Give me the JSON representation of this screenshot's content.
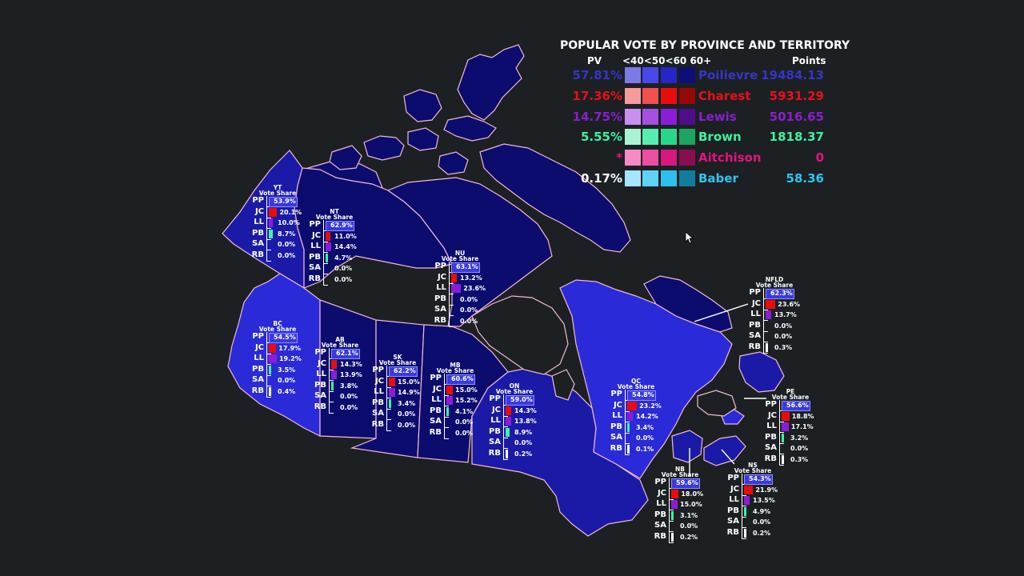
{
  "legend": {
    "title": "POPULAR VOTE BY PROVINCE AND TERRITORY",
    "col_pv": "PV",
    "col_bins": "<40<50<60 60+",
    "col_points": "Points",
    "candidates": [
      {
        "pv": "57.81%",
        "name": "Poilievre",
        "points": "19484.13",
        "color": "#3535c8",
        "swatches": [
          "#7a7ae8",
          "#4848e8",
          "#2525c8",
          "#0e0e78"
        ]
      },
      {
        "pv": "17.36%",
        "name": "Charest",
        "points": "5931.29",
        "color": "#e8101a",
        "swatches": [
          "#f79a9a",
          "#ef5050",
          "#e80d0d",
          "#960808"
        ]
      },
      {
        "pv": "14.75%",
        "name": "Lewis",
        "points": "5016.65",
        "color": "#8a1ed0",
        "swatches": [
          "#c98ef0",
          "#a550e0",
          "#8a1ed8",
          "#4e0e88"
        ]
      },
      {
        "pv": "5.55%",
        "name": "Brown",
        "points": "1818.37",
        "color": "#3df2a0",
        "swatches": [
          "#a8f5cf",
          "#56eeb0",
          "#27d88a",
          "#1ca463"
        ]
      },
      {
        "pv": "*",
        "name": "Aitchison",
        "points": "0",
        "color": "#e0157d",
        "swatches": [
          "#f58ac4",
          "#ec4ea2",
          "#d6187f",
          "#880e4f"
        ]
      },
      {
        "pv": "0.17%",
        "name": "Baber",
        "points": "58.36",
        "color": "#2ec4ef",
        "swatches": [
          "#a4e6fb",
          "#5fd3f5",
          "#2ec0ec",
          "#137c9c"
        ]
      }
    ]
  },
  "row_labels": [
    "PP",
    "JC",
    "LL",
    "PB",
    "SA",
    "RB"
  ],
  "vote_share_label": "Vote Share",
  "provinces": [
    {
      "abbr": "YT",
      "values": [
        "53.9%",
        "20.1%",
        "10.0%",
        "8.7%",
        "0.0%",
        "0.0%"
      ],
      "shares": [
        53.9,
        20.1,
        10.0,
        8.7,
        0.0,
        0.0
      ]
    },
    {
      "abbr": "NT",
      "values": [
        "62.9%",
        "11.0%",
        "14.4%",
        "4.7%",
        "0.0%",
        "0.0%"
      ],
      "shares": [
        62.9,
        11.0,
        14.4,
        4.7,
        0.0,
        0.0
      ]
    },
    {
      "abbr": "NU",
      "values": [
        "63.1%",
        "13.2%",
        "23.6%",
        "0.0%",
        "0.0%",
        "0.0%"
      ],
      "shares": [
        63.1,
        13.2,
        23.6,
        0.0,
        0.0,
        0.0
      ]
    },
    {
      "abbr": "BC",
      "values": [
        "54.5%",
        "17.9%",
        "19.2%",
        "3.5%",
        "0.0%",
        "0.4%"
      ],
      "shares": [
        54.5,
        17.9,
        19.2,
        3.5,
        0.0,
        0.4
      ]
    },
    {
      "abbr": "AB",
      "values": [
        "62.1%",
        "14.3%",
        "13.9%",
        "3.8%",
        "0.0%",
        "0.0%"
      ],
      "shares": [
        62.1,
        14.3,
        13.9,
        3.8,
        0.0,
        0.0
      ]
    },
    {
      "abbr": "SK",
      "values": [
        "62.2%",
        "15.0%",
        "14.9%",
        "3.4%",
        "0.0%",
        "0.0%"
      ],
      "shares": [
        62.2,
        15.0,
        14.9,
        3.4,
        0.0,
        0.0
      ]
    },
    {
      "abbr": "MB",
      "values": [
        "60.6%",
        "15.0%",
        "15.2%",
        "4.1%",
        "0.0%",
        "0.0%"
      ],
      "shares": [
        60.6,
        15.0,
        15.2,
        4.1,
        0.0,
        0.0
      ]
    },
    {
      "abbr": "ON",
      "values": [
        "59.0%",
        "14.3%",
        "13.8%",
        "8.9%",
        "0.0%",
        "0.2%"
      ],
      "shares": [
        59.0,
        14.3,
        13.8,
        8.9,
        0.0,
        0.2
      ]
    },
    {
      "abbr": "QC",
      "values": [
        "54.8%",
        "23.2%",
        "14.2%",
        "3.4%",
        "0.0%",
        "0.1%"
      ],
      "shares": [
        54.8,
        23.2,
        14.2,
        3.4,
        0.0,
        0.1
      ]
    },
    {
      "abbr": "NFLD",
      "values": [
        "62.3%",
        "23.6%",
        "13.7%",
        "0.0%",
        "0.0%",
        "0.3%"
      ],
      "shares": [
        62.3,
        23.6,
        13.7,
        0.0,
        0.0,
        0.3
      ]
    },
    {
      "abbr": "PE",
      "values": [
        "56.6%",
        "18.8%",
        "17.1%",
        "3.2%",
        "0.0%",
        "0.3%"
      ],
      "shares": [
        56.6,
        18.8,
        17.1,
        3.2,
        0.0,
        0.3
      ]
    },
    {
      "abbr": "NB",
      "values": [
        "59.6%",
        "18.0%",
        "15.0%",
        "3.1%",
        "0.0%",
        "0.2%"
      ],
      "shares": [
        59.6,
        18.0,
        15.0,
        3.1,
        0.0,
        0.2
      ]
    },
    {
      "abbr": "NS",
      "values": [
        "54.3%",
        "21.9%",
        "13.5%",
        "4.9%",
        "0.0%",
        "0.2%"
      ],
      "shares": [
        54.3,
        21.9,
        13.5,
        4.9,
        0.0,
        0.2
      ]
    }
  ],
  "colors": {
    "background": "#1c2023",
    "region_dark": "#0c0c6e",
    "region_mid": "#1a1aa6",
    "region_light": "#2a2ad8",
    "border": "#f3b9d4",
    "pp_bar": "#3a3ae0",
    "jc_bar": "#e80d0d",
    "ll_bar": "#8a1ed8",
    "pb_bar": "#3df2a0"
  }
}
